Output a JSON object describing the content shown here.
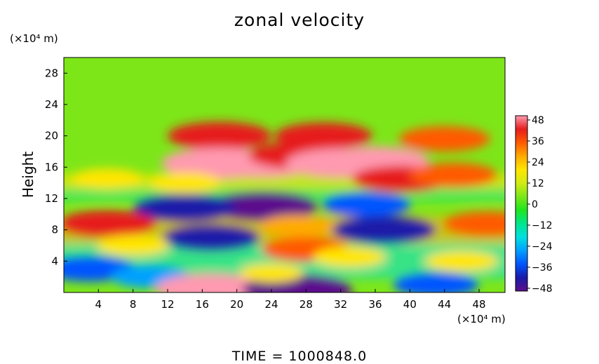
{
  "chart_data": {
    "type": "heatmap",
    "title": "zonal velocity",
    "ylabel": "Height",
    "x_unit": "(×10⁴ m)",
    "y_unit": "(×10⁴ m)",
    "footer": "TIME  =  1000848.0",
    "xlim": [
      0,
      51
    ],
    "ylim": [
      0,
      30
    ],
    "x_ticks": [
      "4",
      "8",
      "12",
      "16",
      "20",
      "24",
      "28",
      "32",
      "36",
      "40",
      "44",
      "48"
    ],
    "y_ticks": [
      "4",
      "8",
      "12",
      "16",
      "20",
      "24",
      "28"
    ],
    "colorbar": {
      "range": [
        -48,
        48
      ],
      "ticks": [
        "48",
        "36",
        "24",
        "12",
        "0",
        "−12",
        "−24",
        "−36",
        "−48"
      ],
      "colors": [
        "#5c0f8c",
        "#1a1aa8",
        "#0055ff",
        "#00a0ff",
        "#00e0e0",
        "#00e68c",
        "#1ee61e",
        "#7de619",
        "#d2eb14",
        "#ffe600",
        "#ffaa00",
        "#ff5a00",
        "#e61e1e",
        "#ff9ab0"
      ]
    },
    "features": [
      {
        "x": 18,
        "y": 20.0,
        "value": 40
      },
      {
        "x": 30,
        "y": 20.0,
        "value": 36
      },
      {
        "x": 44,
        "y": 19.6,
        "value": 32
      },
      {
        "x": 23,
        "y": 16.5,
        "value": 42
      },
      {
        "x": 18,
        "y": 16.5,
        "value": 48
      },
      {
        "x": 27,
        "y": 17.5,
        "value": 36
      },
      {
        "x": 32,
        "y": 16.5,
        "value": 44
      },
      {
        "x": 36,
        "y": 16.8,
        "value": 42
      },
      {
        "x": 39,
        "y": 14.5,
        "value": 36
      },
      {
        "x": 45,
        "y": 15.0,
        "value": 30
      },
      {
        "x": 5,
        "y": 14.5,
        "value": 20
      },
      {
        "x": 14,
        "y": 14.0,
        "value": 20
      },
      {
        "x": 23,
        "y": 11.0,
        "value": -44
      },
      {
        "x": 14,
        "y": 10.8,
        "value": -40
      },
      {
        "x": 35,
        "y": 11.2,
        "value": -30
      },
      {
        "x": 5,
        "y": 8.8,
        "value": 36
      },
      {
        "x": 49,
        "y": 8.8,
        "value": 30
      },
      {
        "x": 27,
        "y": 8.5,
        "value": 22
      },
      {
        "x": 17,
        "y": 7.0,
        "value": -36
      },
      {
        "x": 37,
        "y": 8.0,
        "value": -40
      },
      {
        "x": 28,
        "y": 5.5,
        "value": 30
      },
      {
        "x": 33,
        "y": 4.5,
        "value": 20
      },
      {
        "x": 3,
        "y": 3.0,
        "value": -32
      },
      {
        "x": 10,
        "y": 2.0,
        "value": -24
      },
      {
        "x": 17,
        "y": 0.5,
        "value": 44
      },
      {
        "x": 27,
        "y": 0.4,
        "value": -44
      },
      {
        "x": 43,
        "y": 1.0,
        "value": -28
      },
      {
        "x": 8,
        "y": 6.0,
        "value": 20
      },
      {
        "x": 46,
        "y": 4.0,
        "value": 20
      },
      {
        "x": 24,
        "y": 2.5,
        "value": 14
      }
    ]
  }
}
